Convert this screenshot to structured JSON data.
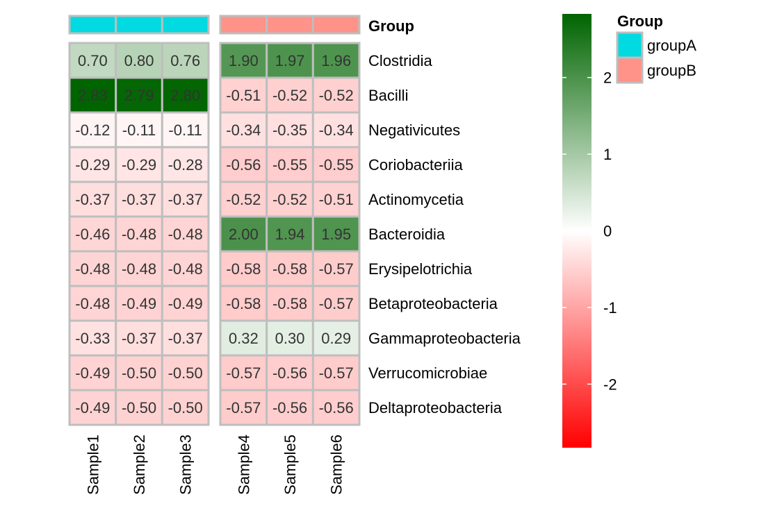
{
  "chart_data": {
    "type": "heatmap",
    "columns": [
      "Sample1",
      "Sample2",
      "Sample3",
      "Sample4",
      "Sample5",
      "Sample6"
    ],
    "rows": [
      "Clostridia",
      "Bacilli",
      "Negativicutes",
      "Coriobacteriia",
      "Actinomycetia",
      "Bacteroidia",
      "Erysipelotrichia",
      "Betaproteobacteria",
      "Gammaproteobacteria",
      "Verrucomicrobiae",
      "Deltaproteobacteria"
    ],
    "values": [
      [
        0.7,
        0.8,
        0.76,
        1.9,
        1.97,
        1.96
      ],
      [
        2.83,
        2.79,
        2.8,
        -0.51,
        -0.52,
        -0.52
      ],
      [
        -0.12,
        -0.11,
        -0.11,
        -0.34,
        -0.35,
        -0.34
      ],
      [
        -0.29,
        -0.29,
        -0.28,
        -0.56,
        -0.55,
        -0.55
      ],
      [
        -0.37,
        -0.37,
        -0.37,
        -0.52,
        -0.52,
        -0.51
      ],
      [
        -0.46,
        -0.48,
        -0.48,
        2.0,
        1.94,
        1.95
      ],
      [
        -0.48,
        -0.48,
        -0.48,
        -0.58,
        -0.58,
        -0.57
      ],
      [
        -0.48,
        -0.49,
        -0.49,
        -0.58,
        -0.58,
        -0.57
      ],
      [
        -0.33,
        -0.37,
        -0.37,
        0.32,
        0.3,
        0.29
      ],
      [
        -0.49,
        -0.5,
        -0.5,
        -0.57,
        -0.56,
        -0.57
      ],
      [
        -0.49,
        -0.5,
        -0.5,
        -0.57,
        -0.56,
        -0.56
      ]
    ],
    "column_groups": [
      "groupA",
      "groupA",
      "groupA",
      "groupB",
      "groupB",
      "groupB"
    ],
    "annotation_title": "Group",
    "annotation_legend": {
      "title": "Group",
      "entries": [
        {
          "name": "groupA",
          "color": "#00DAE0"
        },
        {
          "name": "groupB",
          "color": "#FF9289"
        }
      ]
    },
    "color_scale": {
      "low": "#FF0000",
      "mid": "#FFFFFF",
      "high": "#006400",
      "range": [
        -2.83,
        2.83
      ],
      "ticks": [
        2,
        1,
        0,
        -1,
        -2
      ],
      "tick_labels": [
        "2",
        "1",
        "0",
        "-1",
        "-2"
      ]
    },
    "grid": false,
    "legend_position": "right",
    "cell_border_color": "#BEBEBE"
  }
}
